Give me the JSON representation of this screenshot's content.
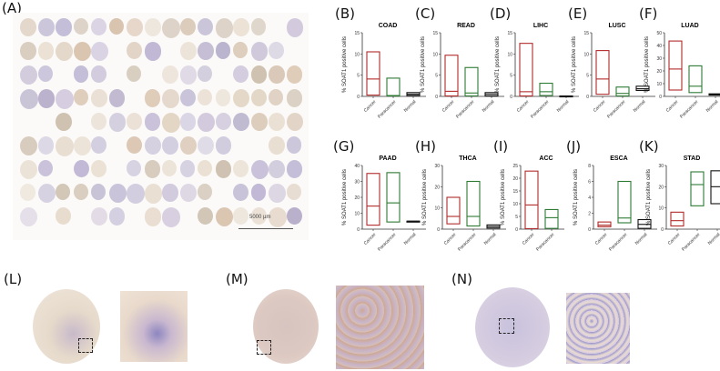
{
  "panels": {
    "A": "(A)",
    "B": "(B)",
    "C": "(C)",
    "D": "(D)",
    "E": "(E)",
    "F": "(F)",
    "G": "(G)",
    "H": "(H)",
    "I": "(I)",
    "J": "(J)",
    "K": "(K)",
    "L": "(L)",
    "M": "(M)",
    "N": "(N)"
  },
  "tma": {
    "scale_bar_label": "5000 µm"
  },
  "colors": {
    "cancer": "#b22b2b",
    "paracancer": "#2d7a33",
    "normal": "#111111",
    "axis": "#333333"
  },
  "chart_data": [
    {
      "panel": "B",
      "type": "box",
      "title": "COAD",
      "ylabel": "% SOAT1 positive cells",
      "ylim": [
        0,
        15
      ],
      "yticks": [
        0,
        5,
        10,
        15
      ],
      "categories": [
        "Cancer",
        "Paracancer",
        "Normal"
      ],
      "series": [
        {
          "name": "Cancer",
          "min": 0.3,
          "median": 4.1,
          "max": 10.5
        },
        {
          "name": "Paracancer",
          "min": 0.1,
          "median": 0.2,
          "max": 4.3
        },
        {
          "name": "Normal",
          "min": 0.2,
          "median": 0.5,
          "max": 0.9
        }
      ]
    },
    {
      "panel": "C",
      "type": "box",
      "title": "READ",
      "ylabel": "% SOAT1 positive cells",
      "ylim": [
        0,
        15
      ],
      "yticks": [
        0,
        5,
        10,
        15
      ],
      "categories": [
        "Cancer",
        "Paracancer",
        "Normal"
      ],
      "series": [
        {
          "name": "Cancer",
          "min": 0.1,
          "median": 1.2,
          "max": 9.7
        },
        {
          "name": "Paracancer",
          "min": 0.1,
          "median": 0.8,
          "max": 6.8
        },
        {
          "name": "Normal",
          "min": 0.1,
          "median": 0.5,
          "max": 0.9
        }
      ]
    },
    {
      "panel": "D",
      "type": "box",
      "title": "LIHC",
      "ylabel": "% SOAT1 positive cells",
      "ylim": [
        0,
        15
      ],
      "yticks": [
        0,
        5,
        10,
        15
      ],
      "categories": [
        "Cancer",
        "Paracancer",
        "Normal"
      ],
      "series": [
        {
          "name": "Cancer",
          "min": 0.1,
          "median": 1.1,
          "max": 12.5
        },
        {
          "name": "Paracancer",
          "min": 0.2,
          "median": 1.1,
          "max": 3.1
        },
        {
          "name": "Normal",
          "min": 0.0,
          "median": 0.05,
          "max": 0.1
        }
      ]
    },
    {
      "panel": "E",
      "type": "box",
      "title": "LUSC",
      "ylabel": "% SOAT1 positive cells",
      "ylim": [
        0,
        15
      ],
      "yticks": [
        0,
        5,
        10,
        15
      ],
      "categories": [
        "Cancer",
        "Paracancer",
        "Normal"
      ],
      "series": [
        {
          "name": "Cancer",
          "min": 0.5,
          "median": 4.1,
          "max": 10.8
        },
        {
          "name": "Paracancer",
          "min": 0.1,
          "median": 0.7,
          "max": 2.2
        },
        {
          "name": "Normal",
          "min": 1.4,
          "median": 1.8,
          "max": 2.4
        }
      ]
    },
    {
      "panel": "F",
      "type": "box",
      "title": "LUAD",
      "ylabel": "% SOAT1 positive cells",
      "ylim": [
        0,
        50
      ],
      "yticks": [
        0,
        10,
        20,
        30,
        40,
        50
      ],
      "categories": [
        "Cancer",
        "Paracancer",
        "Normal"
      ],
      "series": [
        {
          "name": "Cancer",
          "min": 5,
          "median": 21.5,
          "max": 43.5
        },
        {
          "name": "Paracancer",
          "min": 3,
          "median": 8,
          "max": 24
        },
        {
          "name": "Normal",
          "min": 1,
          "median": 1.5,
          "max": 2
        }
      ]
    },
    {
      "panel": "G",
      "type": "box",
      "title": "PAAD",
      "ylabel": "% SOAT1 positive cells",
      "ylim": [
        0,
        40
      ],
      "yticks": [
        0,
        10,
        20,
        30,
        40
      ],
      "categories": [
        "Cancer",
        "Paracancer",
        "Normal"
      ],
      "series": [
        {
          "name": "Cancer",
          "min": 2.5,
          "median": 14.5,
          "max": 35
        },
        {
          "name": "Paracancer",
          "min": 4.5,
          "median": 16.5,
          "max": 35.5
        },
        {
          "name": "Normal",
          "min": 5,
          "median": 5,
          "max": 5
        }
      ]
    },
    {
      "panel": "H",
      "type": "box",
      "title": "THCA",
      "ylabel": "% SOAT1 positive cells",
      "ylim": [
        0,
        30
      ],
      "yticks": [
        0,
        10,
        20,
        30
      ],
      "categories": [
        "Cancer",
        "Paracancer",
        "Normal"
      ],
      "series": [
        {
          "name": "Cancer",
          "min": 2.5,
          "median": 6,
          "max": 15
        },
        {
          "name": "Paracancer",
          "min": 1.5,
          "median": 6,
          "max": 22.5
        },
        {
          "name": "Normal",
          "min": 0.5,
          "median": 1.2,
          "max": 2
        }
      ]
    },
    {
      "panel": "I",
      "type": "box",
      "title": "ACC",
      "ylabel": "% SOAT1 positive cells",
      "ylim": [
        0,
        25
      ],
      "yticks": [
        0,
        5,
        10,
        15,
        20,
        25
      ],
      "categories": [
        "Cancer",
        "Paracancer"
      ],
      "series": [
        {
          "name": "Cancer",
          "min": 0.2,
          "median": 9.5,
          "max": 22.8
        },
        {
          "name": "Paracancer",
          "min": 0.3,
          "median": 4.5,
          "max": 7.7
        }
      ]
    },
    {
      "panel": "J",
      "type": "box",
      "title": "ESCA",
      "ylabel": "% SOAT1 positive cells",
      "ylim": [
        0,
        8
      ],
      "yticks": [
        0,
        2,
        4,
        6,
        8
      ],
      "categories": [
        "Cancer",
        "Paracancer",
        "Normal"
      ],
      "series": [
        {
          "name": "Cancer",
          "min": 0.3,
          "median": 0.5,
          "max": 0.9
        },
        {
          "name": "Paracancer",
          "min": 0.8,
          "median": 1.4,
          "max": 6
        },
        {
          "name": "Normal",
          "min": 0.1,
          "median": 0.6,
          "max": 1.2
        }
      ]
    },
    {
      "panel": "K",
      "type": "box",
      "title": "STAD",
      "ylabel": "% SOAT1 positive cells",
      "ylim": [
        0,
        30
      ],
      "yticks": [
        0,
        10,
        20,
        30
      ],
      "categories": [
        "Cancer",
        "Paracancer",
        "Normal"
      ],
      "series": [
        {
          "name": "Cancer",
          "min": 1.5,
          "median": 4,
          "max": 8
        },
        {
          "name": "Paracancer",
          "min": 11,
          "median": 21,
          "max": 27
        },
        {
          "name": "Normal",
          "min": 12,
          "median": 20,
          "max": 27.5
        }
      ]
    }
  ]
}
